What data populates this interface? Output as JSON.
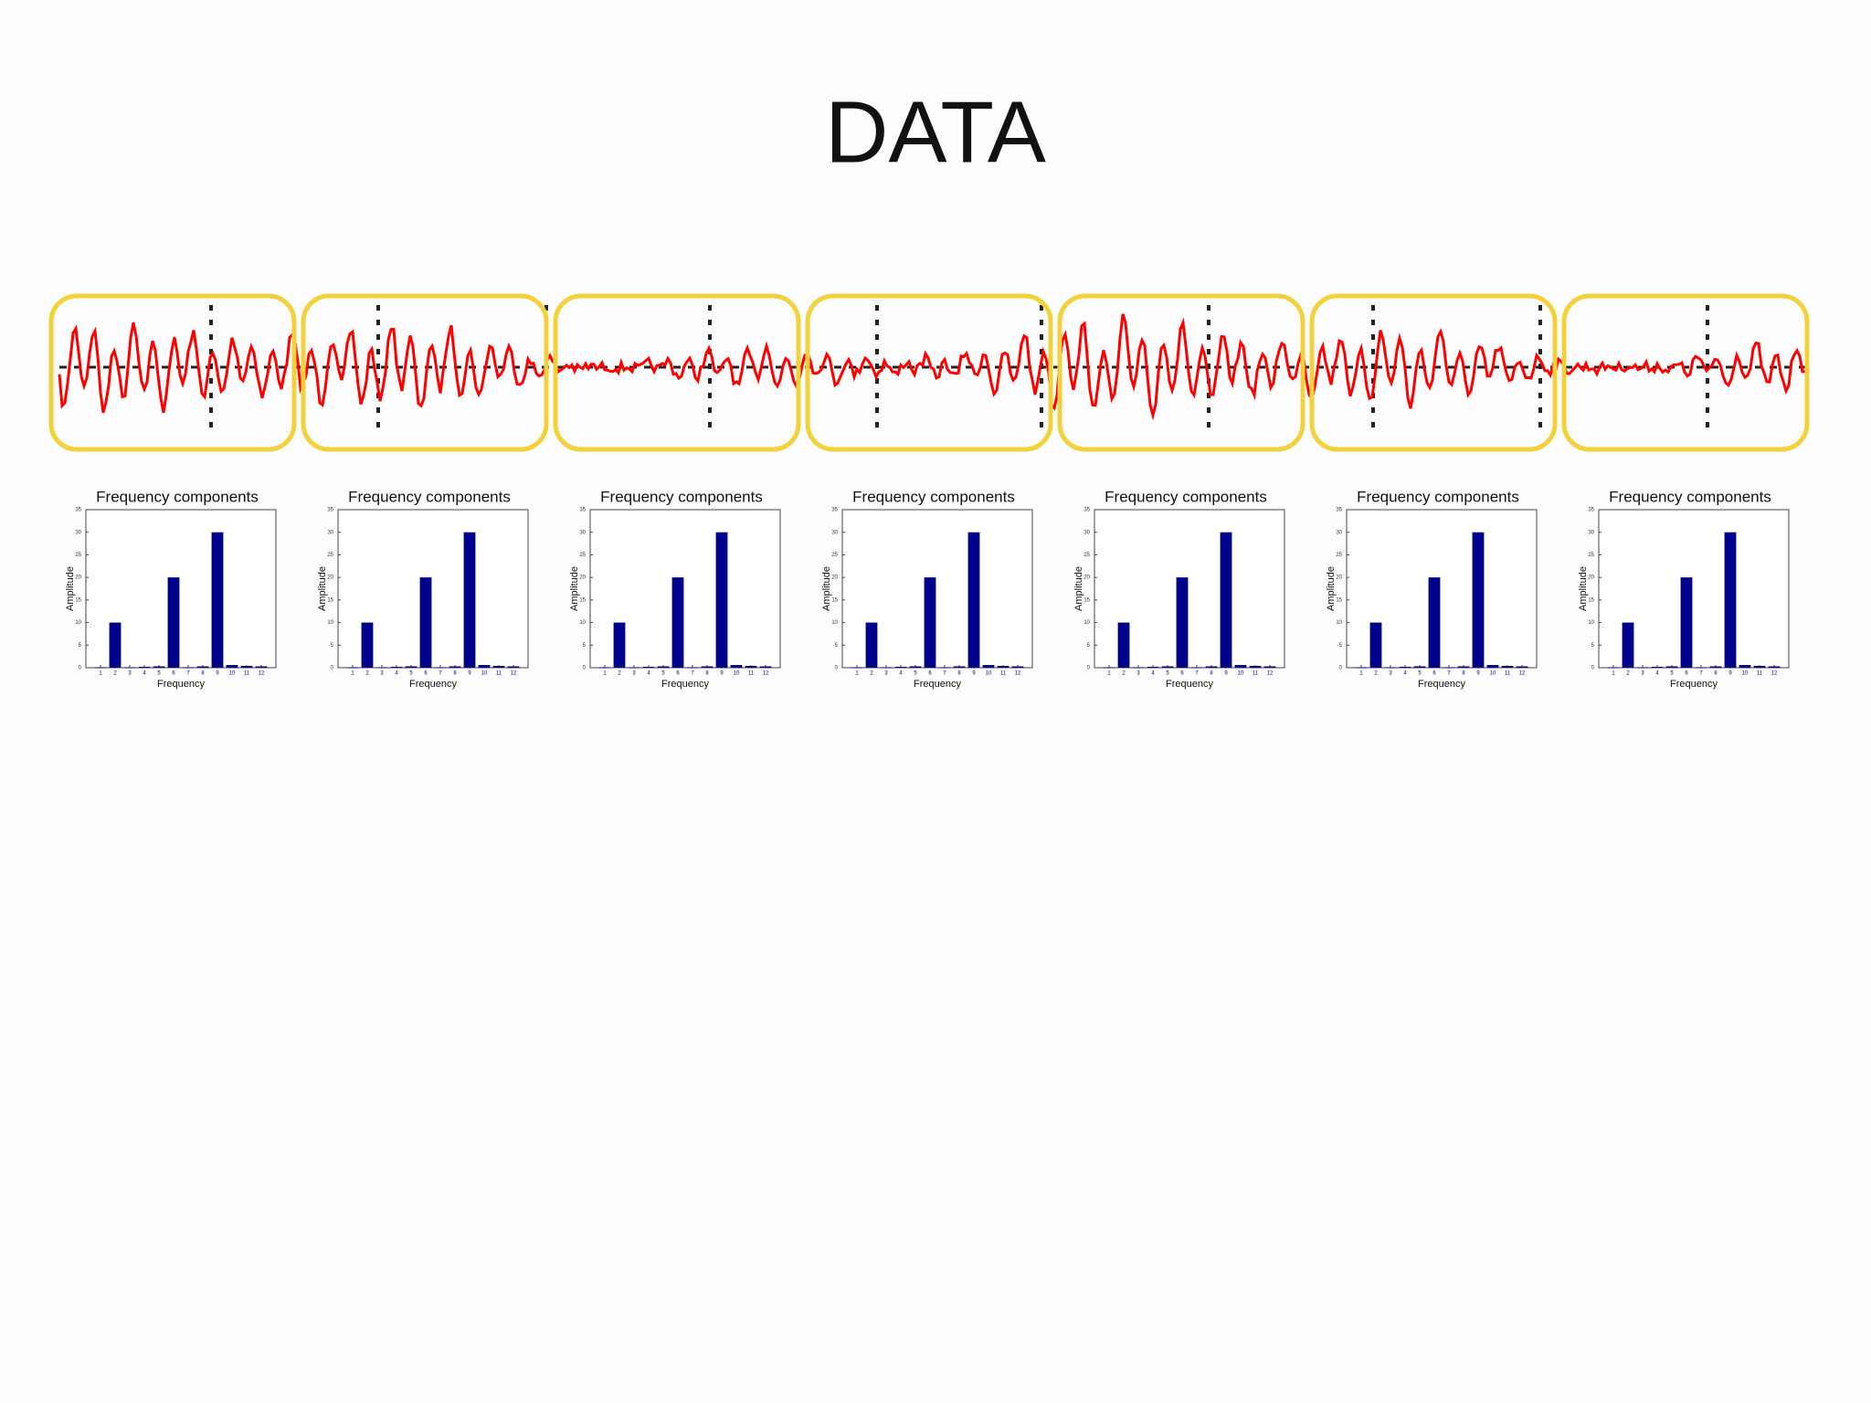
{
  "title": "DATA",
  "chart_data": [
    {
      "type": "bar",
      "title": "Frequency components",
      "x_label": "Frequency",
      "y_label": "Amplitude",
      "x": [
        1,
        2,
        3,
        4,
        5,
        6,
        7,
        8,
        9,
        10,
        11,
        12
      ],
      "values": [
        0.1,
        10,
        0.1,
        0.2,
        0.3,
        20,
        0.1,
        0.3,
        30,
        0.6,
        0.4,
        0.3
      ],
      "color": "#00008b",
      "xlim": [
        0,
        13
      ],
      "xticks": [
        1,
        2,
        3,
        4,
        5,
        6,
        7,
        8,
        9,
        10,
        11,
        12
      ],
      "ylim": [
        0,
        35
      ],
      "yticks": [
        0,
        5,
        10,
        15,
        20,
        25,
        30,
        35
      ]
    },
    {
      "type": "bar",
      "title": "Frequency components",
      "x_label": "Frequency",
      "y_label": "Amplitude",
      "x": [
        1,
        2,
        3,
        4,
        5,
        6,
        7,
        8,
        9,
        10,
        11,
        12
      ],
      "values": [
        0.1,
        10,
        0.1,
        0.2,
        0.3,
        20,
        0.1,
        0.3,
        30,
        0.6,
        0.4,
        0.3
      ],
      "color": "#00008b",
      "xlim": [
        0,
        13
      ],
      "xticks": [
        1,
        2,
        3,
        4,
        5,
        6,
        7,
        8,
        9,
        10,
        11,
        12
      ],
      "ylim": [
        0,
        35
      ],
      "yticks": [
        0,
        5,
        10,
        15,
        20,
        25,
        30,
        35
      ]
    },
    {
      "type": "bar",
      "title": "Frequency components",
      "x_label": "Frequency",
      "y_label": "Amplitude",
      "x": [
        1,
        2,
        3,
        4,
        5,
        6,
        7,
        8,
        9,
        10,
        11,
        12
      ],
      "values": [
        0.1,
        10,
        0.1,
        0.2,
        0.3,
        20,
        0.1,
        0.3,
        30,
        0.6,
        0.4,
        0.3
      ],
      "color": "#00008b",
      "xlim": [
        0,
        13
      ],
      "xticks": [
        1,
        2,
        3,
        4,
        5,
        6,
        7,
        8,
        9,
        10,
        11,
        12
      ],
      "ylim": [
        0,
        35
      ],
      "yticks": [
        0,
        5,
        10,
        15,
        20,
        25,
        30,
        35
      ]
    },
    {
      "type": "bar",
      "title": "Frequency components",
      "x_label": "Frequency",
      "y_label": "Amplitude",
      "x": [
        1,
        2,
        3,
        4,
        5,
        6,
        7,
        8,
        9,
        10,
        11,
        12
      ],
      "values": [
        0.1,
        10,
        0.1,
        0.2,
        0.3,
        20,
        0.1,
        0.3,
        30,
        0.6,
        0.4,
        0.3
      ],
      "color": "#00008b",
      "xlim": [
        0,
        13
      ],
      "xticks": [
        1,
        2,
        3,
        4,
        5,
        6,
        7,
        8,
        9,
        10,
        11,
        12
      ],
      "ylim": [
        0,
        35
      ],
      "yticks": [
        0,
        5,
        10,
        15,
        20,
        25,
        30,
        35
      ]
    },
    {
      "type": "bar",
      "title": "Frequency components",
      "x_label": "Frequency",
      "y_label": "Amplitude",
      "x": [
        1,
        2,
        3,
        4,
        5,
        6,
        7,
        8,
        9,
        10,
        11,
        12
      ],
      "values": [
        0.1,
        10,
        0.1,
        0.2,
        0.3,
        20,
        0.1,
        0.3,
        30,
        0.6,
        0.4,
        0.3
      ],
      "color": "#00008b",
      "xlim": [
        0,
        13
      ],
      "xticks": [
        1,
        2,
        3,
        4,
        5,
        6,
        7,
        8,
        9,
        10,
        11,
        12
      ],
      "ylim": [
        0,
        35
      ],
      "yticks": [
        0,
        5,
        10,
        15,
        20,
        25,
        30,
        35
      ]
    },
    {
      "type": "bar",
      "title": "Frequency components",
      "x_label": "Frequency",
      "y_label": "Amplitude",
      "x": [
        1,
        2,
        3,
        4,
        5,
        6,
        7,
        8,
        9,
        10,
        11,
        12
      ],
      "values": [
        0.1,
        10,
        0.1,
        0.2,
        0.3,
        20,
        0.1,
        0.3,
        30,
        0.6,
        0.4,
        0.3
      ],
      "color": "#00008b",
      "xlim": [
        0,
        13
      ],
      "xticks": [
        1,
        2,
        3,
        4,
        5,
        6,
        7,
        8,
        9,
        10,
        11,
        12
      ],
      "ylim": [
        0,
        35
      ],
      "yticks": [
        0,
        5,
        10,
        15,
        20,
        25,
        30,
        35
      ]
    },
    {
      "type": "bar",
      "title": "Frequency components",
      "x_label": "Frequency",
      "y_label": "Amplitude",
      "x": [
        1,
        2,
        3,
        4,
        5,
        6,
        7,
        8,
        9,
        10,
        11,
        12
      ],
      "values": [
        0.1,
        10,
        0.1,
        0.2,
        0.3,
        20,
        0.1,
        0.3,
        30,
        0.6,
        0.4,
        0.3
      ],
      "color": "#00008b",
      "xlim": [
        0,
        13
      ],
      "xticks": [
        1,
        2,
        3,
        4,
        5,
        6,
        7,
        8,
        9,
        10,
        11,
        12
      ],
      "ylim": [
        0,
        35
      ],
      "yticks": [
        0,
        5,
        10,
        15,
        20,
        25,
        30,
        35
      ]
    }
  ]
}
